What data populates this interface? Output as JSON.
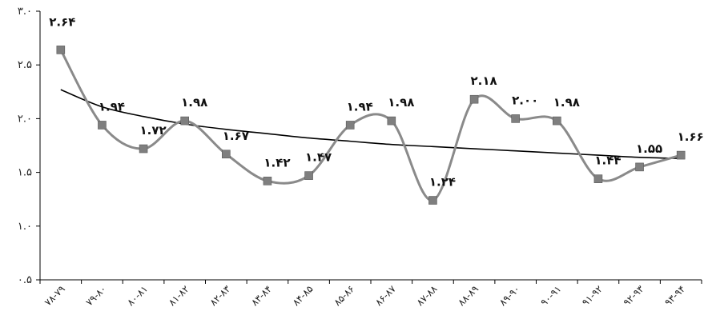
{
  "chart_data": {
    "type": "line",
    "title": "",
    "xlabel": "",
    "ylabel": "",
    "ylim": [
      0.5,
      3.0
    ],
    "y_ticks": [
      {
        "value": 0.5,
        "label": "۰.۵"
      },
      {
        "value": 1.0,
        "label": "۱.۰"
      },
      {
        "value": 1.5,
        "label": "۱.۵"
      },
      {
        "value": 2.0,
        "label": "۲.۰"
      },
      {
        "value": 2.5,
        "label": "۲.۵"
      },
      {
        "value": 3.0,
        "label": "۳.۰"
      }
    ],
    "categories": [
      "۷۸-۷۹",
      "۷۹-۸۰",
      "۸۰-۸۱",
      "۸۱-۸۲",
      "۸۲-۸۳",
      "۸۳-۸۴",
      "۸۴-۸۵",
      "۸۵-۸۶",
      "۸۶-۸۷",
      "۸۷-۸۸",
      "۸۸-۸۹",
      "۸۹-۹۰",
      "۹۰-۹۱",
      "۹۱-۹۲",
      "۹۲-۹۳",
      "۹۳-۹۴"
    ],
    "series": [
      {
        "values": [
          2.64,
          1.94,
          1.72,
          1.98,
          1.67,
          1.42,
          1.47,
          1.94,
          1.98,
          1.24,
          2.18,
          2.0,
          1.98,
          1.44,
          1.55,
          1.66
        ],
        "data_labels": [
          "۲.۶۴",
          "۱.۹۴",
          "۱.۷۲",
          "۱.۹۸",
          "۱.۶۷",
          "۱.۴۲",
          "۱.۴۷",
          "۱.۹۴",
          "۱.۹۸",
          "۱.۲۴",
          "۲.۱۸",
          "۲.۰۰",
          "۱.۹۸",
          "۱.۴۴",
          "۱.۵۵",
          "۱.۶۶"
        ],
        "line_color": "#8a8a8a",
        "marker_color": "#7f7f7f",
        "marker": "square",
        "smooth": true
      }
    ],
    "trendline": {
      "kind": "logarithmic",
      "values": [
        2.27,
        2.11,
        2.02,
        1.95,
        1.9,
        1.86,
        1.82,
        1.79,
        1.76,
        1.74,
        1.72,
        1.7,
        1.68,
        1.66,
        1.64,
        1.63
      ],
      "color": "#000000"
    },
    "grid": false,
    "legend": "none"
  }
}
